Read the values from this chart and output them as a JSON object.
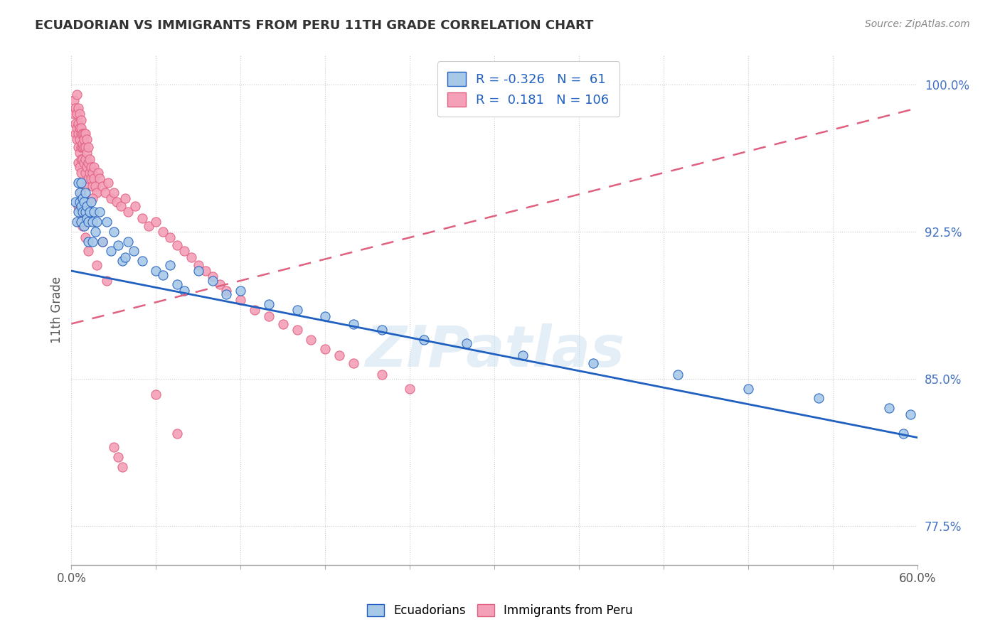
{
  "title": "ECUADORIAN VS IMMIGRANTS FROM PERU 11TH GRADE CORRELATION CHART",
  "source_text": "Source: ZipAtlas.com",
  "ylabel": "11th Grade",
  "xlim": [
    0.0,
    0.6
  ],
  "ylim": [
    0.755,
    1.015
  ],
  "yticks": [
    0.775,
    0.85,
    0.925,
    1.0
  ],
  "ytick_labels": [
    "77.5%",
    "85.0%",
    "92.5%",
    "100.0%"
  ],
  "legend_r1": "-0.326",
  "legend_n1": "61",
  "legend_r2": "0.181",
  "legend_n2": "106",
  "blue_color": "#a8c8e8",
  "pink_color": "#f4a0b8",
  "blue_line_color": "#2060c0",
  "pink_line_color": "#e06080",
  "watermark": "ZIPatlas",
  "blue_trend": [
    0.0,
    0.905,
    0.6,
    0.82
  ],
  "pink_trend": [
    0.0,
    0.878,
    0.6,
    0.988
  ],
  "blue_scatter_x": [
    0.003,
    0.004,
    0.005,
    0.005,
    0.006,
    0.006,
    0.007,
    0.007,
    0.007,
    0.008,
    0.008,
    0.009,
    0.009,
    0.01,
    0.01,
    0.011,
    0.011,
    0.012,
    0.012,
    0.013,
    0.014,
    0.015,
    0.015,
    0.016,
    0.017,
    0.018,
    0.02,
    0.022,
    0.025,
    0.028,
    0.03,
    0.033,
    0.036,
    0.04,
    0.044,
    0.05,
    0.06,
    0.07,
    0.08,
    0.09,
    0.1,
    0.12,
    0.14,
    0.16,
    0.18,
    0.2,
    0.22,
    0.25,
    0.28,
    0.32,
    0.37,
    0.43,
    0.48,
    0.53,
    0.58,
    0.59,
    0.595,
    0.038,
    0.065,
    0.075,
    0.11
  ],
  "blue_scatter_y": [
    0.94,
    0.93,
    0.95,
    0.935,
    0.94,
    0.945,
    0.938,
    0.93,
    0.95,
    0.942,
    0.935,
    0.94,
    0.928,
    0.935,
    0.945,
    0.932,
    0.938,
    0.93,
    0.92,
    0.935,
    0.94,
    0.93,
    0.92,
    0.935,
    0.925,
    0.93,
    0.935,
    0.92,
    0.93,
    0.915,
    0.925,
    0.918,
    0.91,
    0.92,
    0.915,
    0.91,
    0.905,
    0.908,
    0.895,
    0.905,
    0.9,
    0.895,
    0.888,
    0.885,
    0.882,
    0.878,
    0.875,
    0.87,
    0.868,
    0.862,
    0.858,
    0.852,
    0.845,
    0.84,
    0.835,
    0.822,
    0.832,
    0.912,
    0.903,
    0.898,
    0.893
  ],
  "pink_scatter_x": [
    0.002,
    0.002,
    0.003,
    0.003,
    0.003,
    0.004,
    0.004,
    0.004,
    0.004,
    0.005,
    0.005,
    0.005,
    0.005,
    0.005,
    0.006,
    0.006,
    0.006,
    0.006,
    0.006,
    0.007,
    0.007,
    0.007,
    0.007,
    0.007,
    0.007,
    0.008,
    0.008,
    0.008,
    0.008,
    0.009,
    0.009,
    0.009,
    0.009,
    0.01,
    0.01,
    0.01,
    0.01,
    0.01,
    0.011,
    0.011,
    0.011,
    0.012,
    0.012,
    0.012,
    0.013,
    0.013,
    0.014,
    0.014,
    0.015,
    0.015,
    0.016,
    0.016,
    0.017,
    0.018,
    0.019,
    0.02,
    0.022,
    0.024,
    0.026,
    0.028,
    0.03,
    0.032,
    0.035,
    0.038,
    0.04,
    0.045,
    0.05,
    0.055,
    0.06,
    0.065,
    0.07,
    0.075,
    0.08,
    0.085,
    0.09,
    0.095,
    0.1,
    0.105,
    0.11,
    0.12,
    0.13,
    0.14,
    0.15,
    0.16,
    0.17,
    0.18,
    0.19,
    0.2,
    0.22,
    0.24,
    0.005,
    0.006,
    0.007,
    0.008,
    0.009,
    0.01,
    0.012,
    0.015,
    0.018,
    0.022,
    0.025,
    0.06,
    0.075,
    0.03,
    0.033,
    0.036
  ],
  "pink_scatter_y": [
    0.985,
    0.992,
    0.98,
    0.975,
    0.988,
    0.978,
    0.985,
    0.972,
    0.995,
    0.98,
    0.988,
    0.975,
    0.968,
    0.96,
    0.985,
    0.978,
    0.972,
    0.965,
    0.958,
    0.982,
    0.975,
    0.968,
    0.962,
    0.978,
    0.955,
    0.975,
    0.968,
    0.962,
    0.97,
    0.975,
    0.968,
    0.96,
    0.972,
    0.968,
    0.962,
    0.975,
    0.955,
    0.948,
    0.965,
    0.958,
    0.972,
    0.96,
    0.968,
    0.952,
    0.962,
    0.955,
    0.958,
    0.952,
    0.955,
    0.948,
    0.958,
    0.952,
    0.948,
    0.945,
    0.955,
    0.952,
    0.948,
    0.945,
    0.95,
    0.942,
    0.945,
    0.94,
    0.938,
    0.942,
    0.935,
    0.938,
    0.932,
    0.928,
    0.93,
    0.925,
    0.922,
    0.918,
    0.915,
    0.912,
    0.908,
    0.905,
    0.902,
    0.898,
    0.895,
    0.89,
    0.885,
    0.882,
    0.878,
    0.875,
    0.87,
    0.865,
    0.862,
    0.858,
    0.852,
    0.845,
    0.938,
    0.93,
    0.945,
    0.928,
    0.935,
    0.922,
    0.915,
    0.942,
    0.908,
    0.92,
    0.9,
    0.842,
    0.822,
    0.815,
    0.81,
    0.805
  ]
}
